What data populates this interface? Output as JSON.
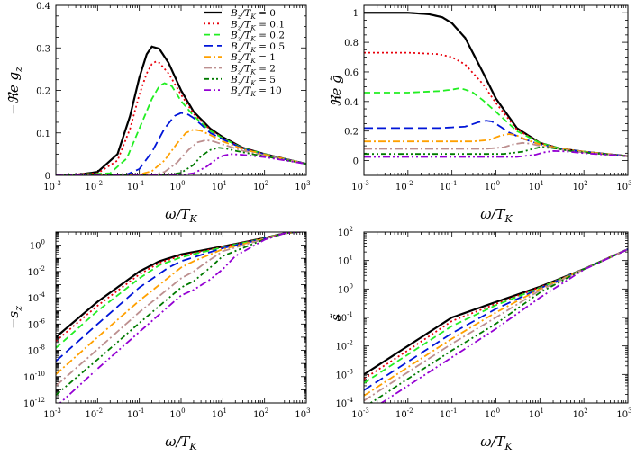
{
  "chart_data": [
    {
      "id": "panel-top-left",
      "type": "line",
      "xscale": "log",
      "xlim": [
        0.001,
        1000
      ],
      "yscale": "linear",
      "ylim": [
        0,
        0.4
      ],
      "xlabel": "ω/T_K",
      "ylabel": "−ℜe g_z",
      "yticks": [
        0,
        0.1,
        0.2,
        0.3,
        0.4
      ],
      "ytick_labels": [
        "0",
        "0.1",
        "0.2",
        "0.3",
        "0.4"
      ],
      "legend": {
        "placement": "top-right",
        "entries": [
          "B_z/T_K = 0",
          "B_z/T_K = 0.1",
          "B_z/T_K = 0.2",
          "B_z/T_K = 0.5",
          "B_z/T_K = 1",
          "B_z/T_K = 2",
          "B_z/T_K = 5",
          "B_z/T_K = 10"
        ]
      },
      "series": [
        {
          "name": "B_z/T_K = 0",
          "x": [
            0.001,
            0.003,
            0.01,
            0.03,
            0.06,
            0.1,
            0.15,
            0.2,
            0.3,
            0.5,
            1,
            2,
            5,
            10,
            30,
            100,
            1000
          ],
          "y": [
            0.0001,
            0.001,
            0.008,
            0.05,
            0.14,
            0.23,
            0.285,
            0.303,
            0.298,
            0.265,
            0.2,
            0.15,
            0.11,
            0.09,
            0.065,
            0.05,
            0.027
          ]
        },
        {
          "name": "B_z/T_K = 0.1",
          "x": [
            0.001,
            0.01,
            0.03,
            0.06,
            0.1,
            0.15,
            0.2,
            0.25,
            0.3,
            0.5,
            1,
            2,
            5,
            10,
            30,
            100,
            1000
          ],
          "y": [
            0,
            0.005,
            0.035,
            0.11,
            0.19,
            0.24,
            0.262,
            0.268,
            0.265,
            0.24,
            0.19,
            0.145,
            0.107,
            0.088,
            0.064,
            0.05,
            0.027
          ]
        },
        {
          "name": "B_z/T_K = 0.2",
          "x": [
            0.001,
            0.02,
            0.05,
            0.1,
            0.2,
            0.3,
            0.4,
            0.6,
            1,
            2,
            5,
            10,
            30,
            100,
            1000
          ],
          "y": [
            0,
            0.005,
            0.04,
            0.11,
            0.18,
            0.21,
            0.217,
            0.21,
            0.175,
            0.14,
            0.105,
            0.087,
            0.064,
            0.05,
            0.027
          ]
        },
        {
          "name": "B_z/T_K = 0.5",
          "x": [
            0.001,
            0.05,
            0.1,
            0.2,
            0.4,
            0.7,
            1,
            1.5,
            2,
            3,
            5,
            10,
            30,
            100,
            1000
          ],
          "y": [
            0,
            0.002,
            0.015,
            0.055,
            0.11,
            0.14,
            0.147,
            0.143,
            0.135,
            0.12,
            0.1,
            0.085,
            0.063,
            0.049,
            0.027
          ]
        },
        {
          "name": "B_z/T_K = 1",
          "x": [
            0.001,
            0.1,
            0.2,
            0.4,
            0.8,
            1.3,
            2,
            3,
            5,
            10,
            30,
            100,
            1000
          ],
          "y": [
            0,
            0.002,
            0.01,
            0.035,
            0.075,
            0.1,
            0.108,
            0.105,
            0.095,
            0.08,
            0.062,
            0.049,
            0.027
          ]
        },
        {
          "name": "B_z/T_K = 2",
          "x": [
            0.001,
            0.2,
            0.4,
            0.8,
            1.5,
            2.5,
            4,
            6,
            10,
            30,
            100,
            1000
          ],
          "y": [
            0,
            0.001,
            0.008,
            0.03,
            0.06,
            0.078,
            0.083,
            0.08,
            0.073,
            0.058,
            0.047,
            0.027
          ]
        },
        {
          "name": "B_z/T_K = 5",
          "x": [
            0.001,
            0.5,
            1,
            2,
            3,
            5,
            8,
            12,
            20,
            50,
            100,
            1000
          ],
          "y": [
            0,
            0.001,
            0.006,
            0.025,
            0.045,
            0.06,
            0.065,
            0.063,
            0.058,
            0.05,
            0.045,
            0.027
          ]
        },
        {
          "name": "B_z/T_K = 10",
          "x": [
            0.001,
            1,
            2,
            4,
            7,
            10,
            15,
            25,
            50,
            100,
            1000
          ],
          "y": [
            0,
            0.001,
            0.005,
            0.02,
            0.038,
            0.046,
            0.05,
            0.049,
            0.046,
            0.043,
            0.027
          ]
        }
      ]
    },
    {
      "id": "panel-top-right",
      "type": "line",
      "xscale": "log",
      "xlim": [
        0.001,
        1000
      ],
      "yscale": "linear",
      "ylim": [
        -0.1,
        1.05
      ],
      "xlabel": "ω/T_K",
      "ylabel": "ℜe g̃",
      "yticks": [
        0,
        0.2,
        0.4,
        0.6,
        0.8,
        1
      ],
      "ytick_labels": [
        "0",
        "0.2",
        "0.4",
        "0.6",
        "0.8",
        "1"
      ],
      "series": [
        {
          "name": "B_z/T_K = 0",
          "x": [
            0.001,
            0.01,
            0.03,
            0.06,
            0.1,
            0.2,
            0.5,
            1,
            3,
            10,
            30,
            100,
            1000
          ],
          "y": [
            1,
            1,
            0.99,
            0.97,
            0.93,
            0.83,
            0.6,
            0.42,
            0.22,
            0.12,
            0.08,
            0.06,
            0.03
          ]
        },
        {
          "name": "B_z/T_K = 0.1",
          "x": [
            0.001,
            0.01,
            0.05,
            0.1,
            0.2,
            0.5,
            1,
            3,
            10,
            30,
            100,
            1000
          ],
          "y": [
            0.73,
            0.73,
            0.72,
            0.7,
            0.65,
            0.52,
            0.39,
            0.21,
            0.12,
            0.08,
            0.06,
            0.03
          ]
        },
        {
          "name": "B_z/T_K = 0.2",
          "x": [
            0.001,
            0.01,
            0.05,
            0.1,
            0.15,
            0.2,
            0.3,
            0.5,
            1,
            3,
            10,
            30,
            100,
            1000
          ],
          "y": [
            0.46,
            0.46,
            0.47,
            0.48,
            0.49,
            0.48,
            0.46,
            0.41,
            0.33,
            0.2,
            0.12,
            0.08,
            0.06,
            0.03
          ]
        },
        {
          "name": "B_z/T_K = 0.5",
          "x": [
            0.001,
            0.05,
            0.2,
            0.4,
            0.6,
            0.8,
            1,
            2,
            4,
            10,
            30,
            100,
            1000
          ],
          "y": [
            0.22,
            0.22,
            0.23,
            0.26,
            0.27,
            0.265,
            0.25,
            0.19,
            0.15,
            0.11,
            0.08,
            0.06,
            0.03
          ]
        },
        {
          "name": "B_z/T_K = 1",
          "x": [
            0.001,
            0.1,
            0.3,
            0.7,
            1.3,
            2,
            3,
            5,
            10,
            30,
            100,
            1000
          ],
          "y": [
            0.13,
            0.13,
            0.13,
            0.14,
            0.17,
            0.18,
            0.17,
            0.14,
            0.11,
            0.08,
            0.06,
            0.03
          ]
        },
        {
          "name": "B_z/T_K = 2",
          "x": [
            0.001,
            0.2,
            0.6,
            1.5,
            2.5,
            4,
            6,
            10,
            30,
            100,
            1000
          ],
          "y": [
            0.08,
            0.08,
            0.08,
            0.09,
            0.11,
            0.12,
            0.115,
            0.1,
            0.075,
            0.055,
            0.03
          ]
        },
        {
          "name": "B_z/T_K = 5",
          "x": [
            0.001,
            0.5,
            1.5,
            4,
            7,
            10,
            20,
            50,
            100,
            1000
          ],
          "y": [
            0.045,
            0.045,
            0.045,
            0.06,
            0.08,
            0.09,
            0.085,
            0.065,
            0.055,
            0.03
          ]
        },
        {
          "name": "B_z/T_K = 10",
          "x": [
            0.001,
            1,
            3,
            8,
            12,
            20,
            40,
            100,
            1000
          ],
          "y": [
            0.025,
            0.025,
            0.025,
            0.04,
            0.055,
            0.065,
            0.062,
            0.05,
            0.03
          ]
        }
      ]
    },
    {
      "id": "panel-bottom-left",
      "type": "line",
      "xscale": "log",
      "xlim": [
        0.001,
        1000
      ],
      "yscale": "log",
      "ylim": [
        1e-12,
        10
      ],
      "xlabel": "ω/T_K",
      "ylabel": "−s_z",
      "yticks": [
        1e-12,
        1e-10,
        1e-08,
        1e-06,
        0.0001,
        0.01,
        1
      ],
      "ytick_exponents": [
        "-12",
        "-10",
        "-8",
        "-6",
        "-4",
        "-2",
        "0"
      ],
      "series": [
        {
          "name": "B_z/T_K = 0",
          "x": [
            0.001,
            0.01,
            0.1,
            0.3,
            1,
            10,
            100,
            300,
            1000
          ],
          "y": [
            1e-07,
            5e-05,
            0.01,
            0.06,
            0.2,
            0.8,
            3.5,
            8,
            12
          ]
        },
        {
          "name": "B_z/T_K = 0.1",
          "x": [
            0.001,
            0.01,
            0.1,
            0.3,
            1,
            10,
            100,
            300,
            1000
          ],
          "y": [
            5e-08,
            2.5e-05,
            0.006,
            0.045,
            0.16,
            0.75,
            3.4,
            8,
            12
          ]
        },
        {
          "name": "B_z/T_K = 0.2",
          "x": [
            0.001,
            0.01,
            0.1,
            0.3,
            1,
            10,
            100,
            300,
            1000
          ],
          "y": [
            1.5e-08,
            1e-05,
            0.003,
            0.03,
            0.12,
            0.7,
            3.3,
            8,
            12
          ]
        },
        {
          "name": "B_z/T_K = 0.5",
          "x": [
            0.001,
            0.01,
            0.1,
            0.5,
            1,
            10,
            100,
            300,
            1000
          ],
          "y": [
            1.5e-09,
            1e-06,
            0.0006,
            0.02,
            0.06,
            0.6,
            3.2,
            8,
            12
          ]
        },
        {
          "name": "B_z/T_K = 1",
          "x": [
            0.001,
            0.01,
            0.1,
            1,
            2,
            10,
            100,
            300,
            1000
          ],
          "y": [
            1.5e-10,
            1e-07,
            6e-05,
            0.02,
            0.06,
            0.5,
            3.1,
            8,
            12
          ]
        },
        {
          "name": "B_z/T_K = 2",
          "x": [
            0.001,
            0.01,
            0.1,
            1,
            2,
            4,
            10,
            100,
            300,
            1000
          ],
          "y": [
            2e-11,
            1.2e-08,
            8e-06,
            0.003,
            0.01,
            0.05,
            0.35,
            3,
            8,
            12
          ]
        },
        {
          "name": "B_z/T_K = 5",
          "x": [
            0.001,
            0.01,
            0.1,
            1,
            2,
            5,
            10,
            100,
            300,
            1000
          ],
          "y": [
            4e-12,
            2e-09,
            1.2e-06,
            0.0006,
            0.0018,
            0.02,
            0.15,
            2.8,
            8,
            12
          ]
        },
        {
          "name": "B_z/T_K = 10",
          "x": [
            0.001,
            0.01,
            0.1,
            1,
            2,
            5,
            10,
            20,
            100,
            300,
            1000
          ],
          "y": [
            5e-13,
            4e-10,
            2.5e-07,
            0.00015,
            0.0004,
            0.0025,
            0.015,
            0.15,
            2.6,
            8,
            12
          ]
        }
      ]
    },
    {
      "id": "panel-bottom-right",
      "type": "line",
      "xscale": "log",
      "xlim": [
        0.001,
        1000
      ],
      "yscale": "log",
      "ylim": [
        0.0001,
        100
      ],
      "xlabel": "ω/T_K",
      "ylabel": "s̃",
      "yticks": [
        0.0001,
        0.001,
        0.01,
        0.1,
        1,
        10,
        100
      ],
      "ytick_exponents": [
        "-4",
        "-3",
        "-2",
        "-1",
        "0",
        "1",
        "2"
      ],
      "series": [
        {
          "name": "B_z/T_K = 0",
          "x": [
            0.001,
            0.01,
            0.1,
            1,
            10,
            100,
            1000
          ],
          "y": [
            0.001,
            0.01,
            0.1,
            0.35,
            1.2,
            5,
            25
          ]
        },
        {
          "name": "B_z/T_K = 0.1",
          "x": [
            0.001,
            0.01,
            0.1,
            1,
            10,
            100,
            1000
          ],
          "y": [
            0.0007,
            0.007,
            0.075,
            0.3,
            1.15,
            5,
            25
          ]
        },
        {
          "name": "B_z/T_K = 0.2",
          "x": [
            0.001,
            0.01,
            0.1,
            1,
            10,
            100,
            1000
          ],
          "y": [
            0.0005,
            0.005,
            0.05,
            0.27,
            1.1,
            5,
            25
          ]
        },
        {
          "name": "B_z/T_K = 0.5",
          "x": [
            0.001,
            0.01,
            0.1,
            1,
            10,
            100,
            1000
          ],
          "y": [
            0.00028,
            0.0028,
            0.028,
            0.2,
            1.05,
            5,
            25
          ]
        },
        {
          "name": "B_z/T_K = 1",
          "x": [
            0.001,
            0.01,
            0.1,
            1,
            10,
            100,
            1000
          ],
          "y": [
            0.00018,
            0.0018,
            0.018,
            0.15,
            1,
            5,
            25
          ]
        },
        {
          "name": "B_z/T_K = 2",
          "x": [
            0.001,
            0.01,
            0.1,
            1,
            10,
            100,
            1000
          ],
          "y": [
            0.00012,
            0.0012,
            0.012,
            0.1,
            0.9,
            5,
            25
          ]
        },
        {
          "name": "B_z/T_K = 5",
          "x": [
            0.001,
            0.01,
            0.1,
            1,
            10,
            100,
            1000
          ],
          "y": [
            7e-05,
            0.0007,
            0.007,
            0.06,
            0.75,
            5,
            25
          ]
        },
        {
          "name": "B_z/T_K = 10",
          "x": [
            0.001,
            0.01,
            0.1,
            1,
            10,
            100,
            1000
          ],
          "y": [
            4e-05,
            0.0004,
            0.004,
            0.04,
            0.5,
            4.8,
            25
          ]
        }
      ]
    }
  ],
  "styles": {
    "colors": [
      "#000000",
      "#e8000b",
      "#22ee22",
      "#0015d8",
      "#ffa000",
      "#bc8f8f",
      "#007a00",
      "#9400d3"
    ],
    "dashes": [
      "",
      "2,3",
      "7,4",
      "10,5",
      "8,3,2,3",
      "9,3,2,3",
      "6,3,2,3,2,3",
      "8,3,2,3,2,3"
    ]
  },
  "x_axis": {
    "tick_exponents": [
      "-3",
      "-2",
      "-1",
      "0",
      "1",
      "2",
      "3"
    ],
    "base": "10"
  }
}
